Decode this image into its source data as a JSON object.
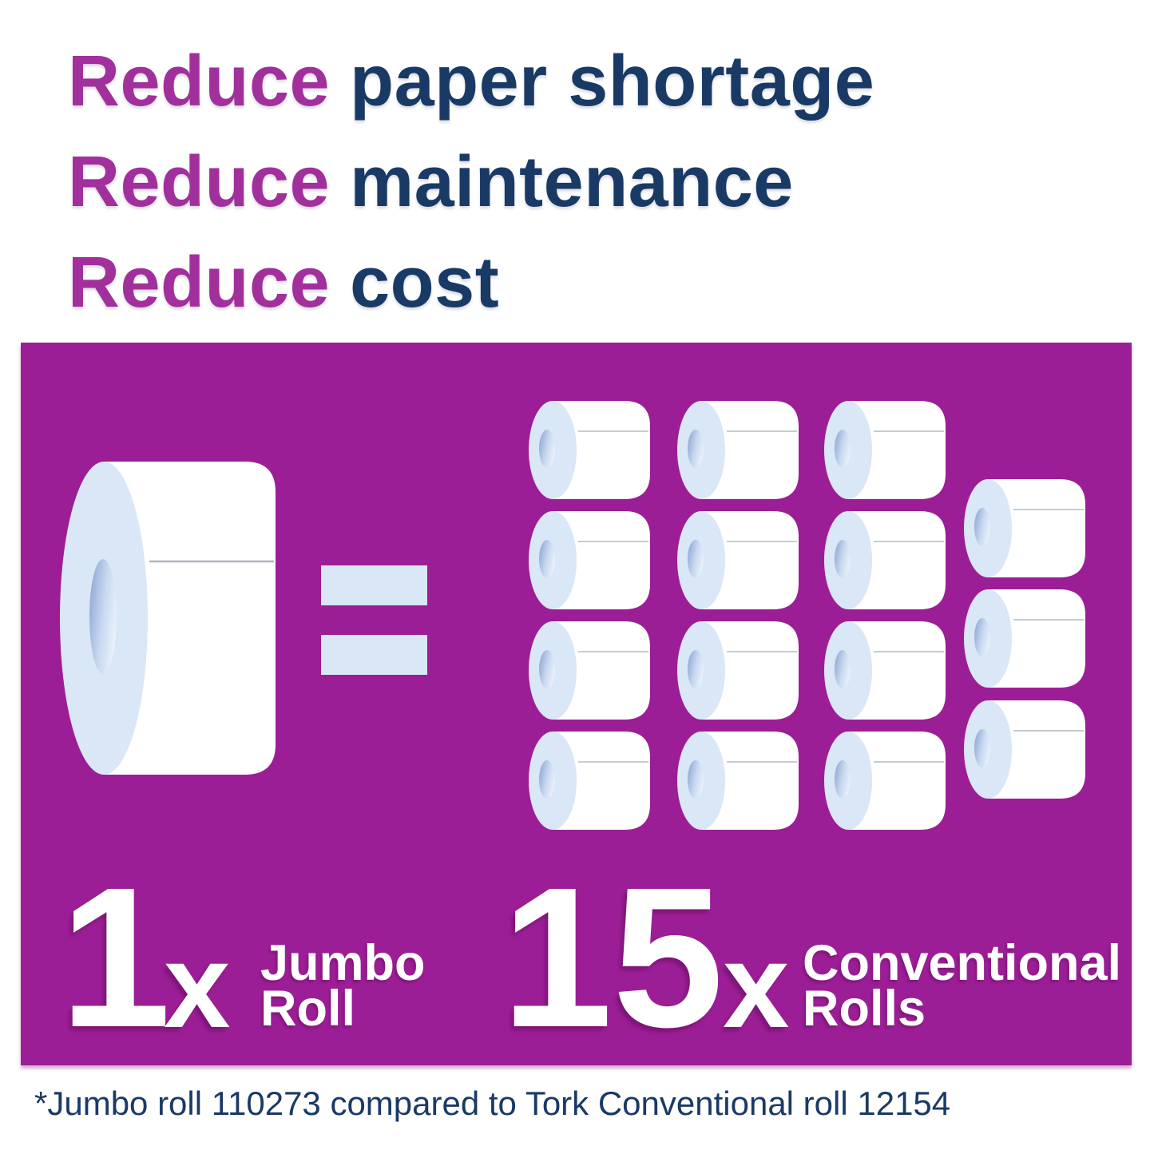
{
  "headlines": [
    {
      "highlight": "Reduce",
      "rest": "paper shortage"
    },
    {
      "highlight": "Reduce",
      "rest": "maintenance"
    },
    {
      "highlight": "Reduce",
      "rest": "cost"
    }
  ],
  "comparison": {
    "left": {
      "count": "1",
      "times": "x",
      "label_line1": "Jumbo",
      "label_line2": "Roll"
    },
    "right": {
      "count": "15",
      "times": "x",
      "label_line1": "Conventional",
      "label_line2": "Rolls"
    },
    "jumbo_rolls_total": 1,
    "conventional_rolls_total": 15,
    "equals_icon": "equals-sign"
  },
  "footnote": "*Jumbo roll 110273 compared to Tork Conventional roll 12154",
  "colors": {
    "accent_purple": "#A1309C",
    "panel_purple": "#9C1E96",
    "navy_text": "#1A3A66",
    "roll_face_blue": "#D9E7F6",
    "roll_core_dark": "#8CA6D5",
    "roll_core_mid": "#C9D9F0",
    "roll_core_light": "#EAF1FB",
    "equals_blue": "#D9E7F6",
    "seam_gray": "#AFB6BE",
    "roll_body_white": "#FFFFFF"
  }
}
